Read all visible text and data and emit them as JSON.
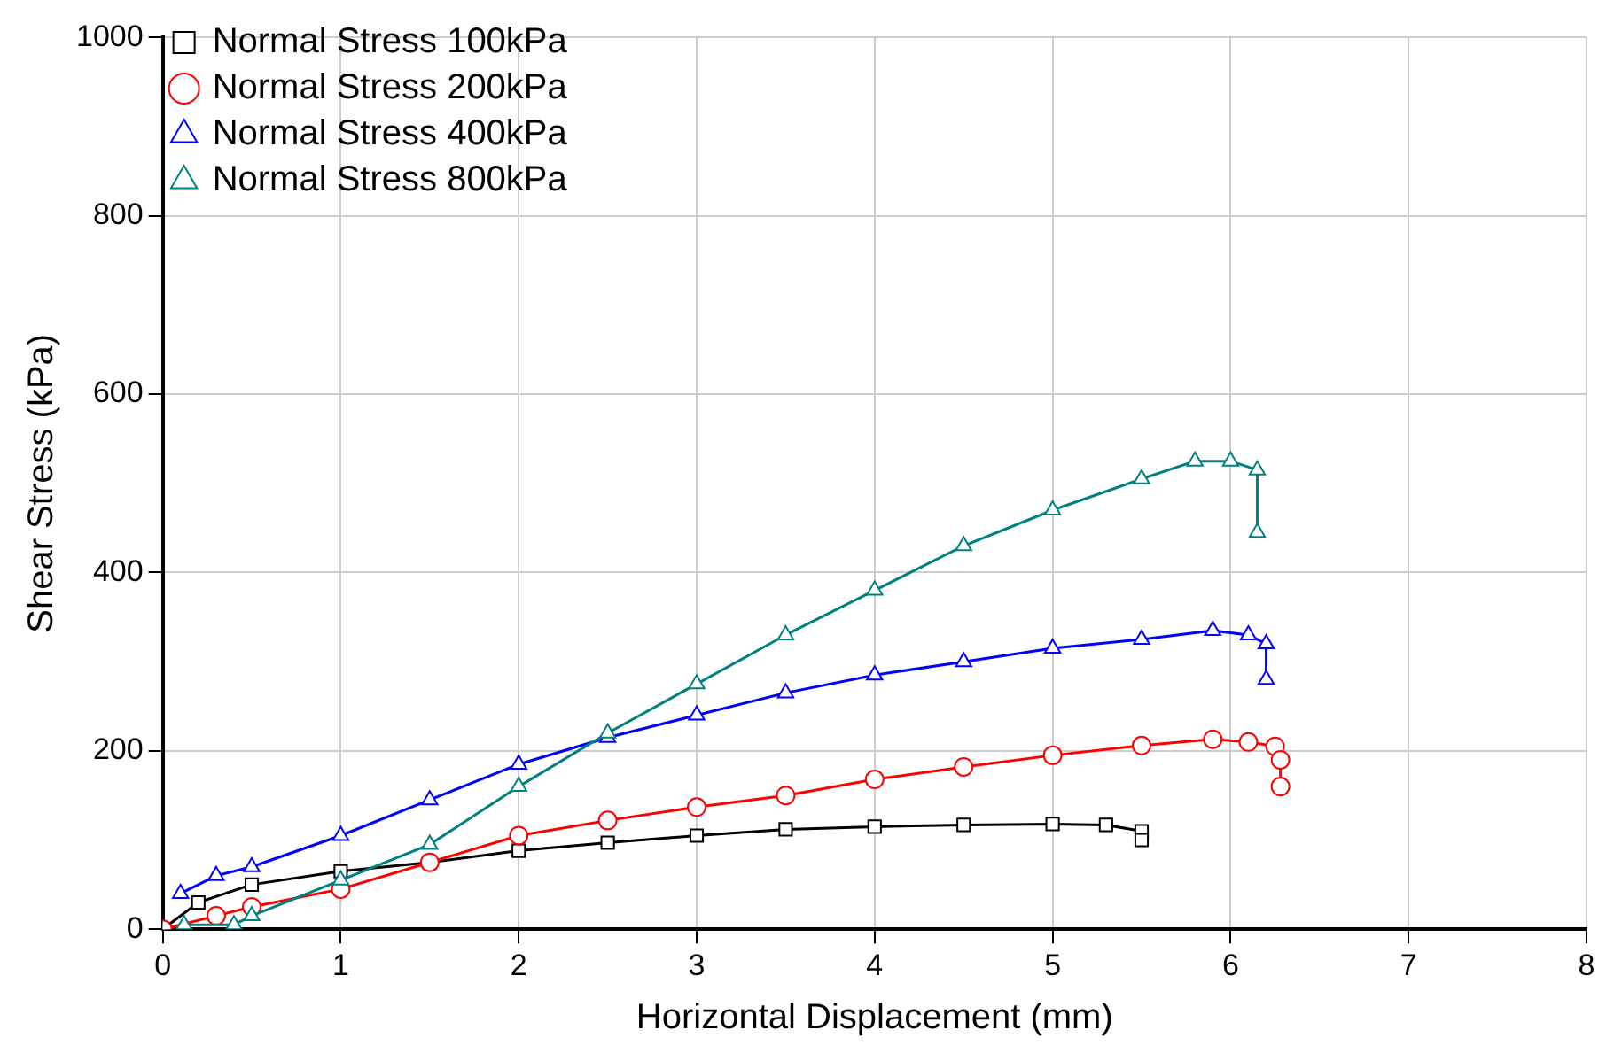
{
  "chart_data": {
    "type": "line",
    "xlabel": "Horizontal Displacement (mm)",
    "ylabel": "Shear Stress (kPa)",
    "xlim": [
      0,
      8
    ],
    "xticks": [
      0,
      1,
      2,
      3,
      4,
      5,
      6,
      7,
      8
    ],
    "ylim": [
      0,
      1000
    ],
    "yticks": [
      0,
      200,
      400,
      600,
      800,
      1000
    ],
    "grid": true,
    "legend": "top left",
    "line_style": "solid",
    "series": [
      {
        "name": "Normal Stress 100kPa",
        "color": "#000000",
        "marker": "square",
        "x": [
          0,
          0.2,
          0.5,
          1,
          1.5,
          2,
          2.5,
          3,
          3.5,
          4,
          4.5,
          5,
          5.3,
          5.5,
          5.5
        ],
        "values": [
          0,
          30,
          50,
          65,
          75,
          88,
          97,
          105,
          112,
          115,
          117,
          118,
          117,
          110,
          100
        ]
      },
      {
        "name": "Normal Stress 200kPa",
        "color": "#ff0000",
        "marker": "circle",
        "x": [
          0,
          0.3,
          0.5,
          1,
          1.5,
          2,
          2.5,
          3,
          3.5,
          4,
          4.5,
          5,
          5.5,
          5.9,
          6.1,
          6.25,
          6.28,
          6.28
        ],
        "values": [
          0,
          15,
          25,
          45,
          75,
          105,
          122,
          137,
          150,
          168,
          182,
          195,
          206,
          213,
          210,
          205,
          190,
          160
        ]
      },
      {
        "name": "Normal Stress 400kPa",
        "color": "#0000ff",
        "marker": "triangle",
        "x": [
          0.1,
          0.3,
          0.5,
          1,
          1.5,
          2,
          2.5,
          3,
          3.5,
          4,
          4.5,
          5,
          5.5,
          5.9,
          6.1,
          6.2,
          6.2
        ],
        "values": [
          40,
          60,
          70,
          105,
          145,
          185,
          215,
          240,
          265,
          285,
          300,
          315,
          325,
          335,
          330,
          320,
          280
        ]
      },
      {
        "name": "Normal Stress 800kPa",
        "color": "#008080",
        "marker": "triangle",
        "x": [
          0.12,
          0.4,
          0.5,
          1,
          1.5,
          2,
          2.5,
          3,
          3.5,
          4,
          4.5,
          5,
          5.5,
          5.8,
          6,
          6.15,
          6.15
        ],
        "values": [
          5,
          5,
          15,
          55,
          95,
          160,
          220,
          275,
          330,
          380,
          430,
          470,
          505,
          525,
          525,
          515,
          445
        ]
      }
    ]
  }
}
